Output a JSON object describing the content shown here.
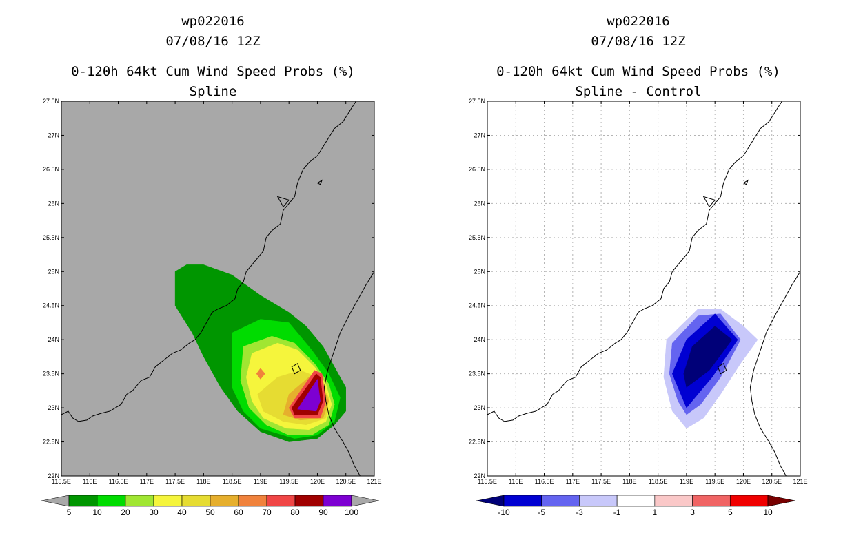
{
  "chart_data": [
    {
      "type": "heatmap",
      "title_lines": [
        "wp022016",
        "07/08/16 12Z",
        "0-120h 64kt Cum Wind Speed Probs (%)",
        "Spline"
      ],
      "xlabel": "",
      "ylabel": "",
      "xlim": [
        115.5,
        121
      ],
      "ylim": [
        22,
        27.5
      ],
      "x_ticks": [
        115.5,
        116,
        116.5,
        117,
        117.5,
        118,
        118.5,
        119,
        119.5,
        120,
        120.5,
        121
      ],
      "x_tick_labels": [
        "115.5E",
        "116E",
        "116.5E",
        "117E",
        "117.5E",
        "118E",
        "118.5E",
        "119E",
        "119.5E",
        "120E",
        "120.5E",
        "121E"
      ],
      "y_ticks": [
        22,
        22.5,
        23,
        23.5,
        24,
        24.5,
        25,
        25.5,
        26,
        26.5,
        27,
        27.5
      ],
      "y_tick_labels": [
        "22N",
        "22.5N",
        "23N",
        "23.5N",
        "24N",
        "24.5N",
        "25N",
        "25.5N",
        "26N",
        "26.5N",
        "27N",
        "27.5N"
      ],
      "grid": false,
      "background_color": "#a8a8a8",
      "colorbar": {
        "labels": [
          "5",
          "10",
          "20",
          "30",
          "40",
          "50",
          "60",
          "70",
          "80",
          "90",
          "100"
        ],
        "colors": [
          "#009600",
          "#00dc00",
          "#a0e632",
          "#f5f53c",
          "#e6dc32",
          "#e6af2d",
          "#f0823c",
          "#f04646",
          "#a00000",
          "#7d00d2"
        ],
        "extend_low_color": "#a8a8a8",
        "extend_high_color": "#a8a8a8"
      },
      "contours": [
        {
          "level": 5,
          "color": "#009600",
          "points": [
            [
              117.5,
              25.0
            ],
            [
              117.7,
              25.1
            ],
            [
              118.0,
              25.1
            ],
            [
              118.5,
              24.95
            ],
            [
              119.0,
              24.65
            ],
            [
              119.5,
              24.4
            ],
            [
              119.8,
              24.2
            ],
            [
              120.1,
              23.9
            ],
            [
              120.3,
              23.6
            ],
            [
              120.5,
              23.3
            ],
            [
              120.5,
              22.95
            ],
            [
              120.3,
              22.75
            ],
            [
              120.0,
              22.55
            ],
            [
              119.5,
              22.5
            ],
            [
              119.0,
              22.65
            ],
            [
              118.6,
              22.95
            ],
            [
              118.3,
              23.3
            ],
            [
              118.0,
              23.75
            ],
            [
              117.8,
              24.1
            ],
            [
              117.5,
              24.5
            ]
          ]
        },
        {
          "level": 10,
          "color": "#00dc00",
          "points": [
            [
              118.5,
              24.1
            ],
            [
              119.0,
              24.3
            ],
            [
              119.5,
              24.25
            ],
            [
              119.9,
              23.85
            ],
            [
              120.2,
              23.5
            ],
            [
              120.4,
              23.15
            ],
            [
              120.3,
              22.8
            ],
            [
              120.0,
              22.6
            ],
            [
              119.6,
              22.55
            ],
            [
              119.0,
              22.7
            ],
            [
              118.7,
              22.95
            ],
            [
              118.5,
              23.3
            ],
            [
              118.5,
              23.7
            ]
          ]
        },
        {
          "level": 20,
          "color": "#a0e632",
          "points": [
            [
              118.7,
              23.9
            ],
            [
              119.2,
              24.05
            ],
            [
              119.6,
              23.95
            ],
            [
              119.95,
              23.65
            ],
            [
              120.2,
              23.35
            ],
            [
              120.3,
              23.05
            ],
            [
              120.2,
              22.75
            ],
            [
              119.9,
              22.6
            ],
            [
              119.5,
              22.6
            ],
            [
              119.1,
              22.75
            ],
            [
              118.8,
              23.0
            ],
            [
              118.65,
              23.4
            ]
          ]
        },
        {
          "level": 30,
          "color": "#f5f53c",
          "points": [
            [
              118.85,
              23.8
            ],
            [
              119.3,
              23.95
            ],
            [
              119.65,
              23.85
            ],
            [
              119.95,
              23.6
            ],
            [
              120.15,
              23.35
            ],
            [
              120.25,
              23.05
            ],
            [
              120.15,
              22.8
            ],
            [
              119.85,
              22.68
            ],
            [
              119.45,
              22.7
            ],
            [
              119.05,
              22.85
            ],
            [
              118.85,
              23.1
            ],
            [
              118.75,
              23.45
            ]
          ]
        },
        {
          "level": 40,
          "color": "#e6dc32",
          "points": [
            [
              119.3,
              23.45
            ],
            [
              119.7,
              23.55
            ],
            [
              120.0,
              23.45
            ],
            [
              120.2,
              23.15
            ],
            [
              120.15,
              22.85
            ],
            [
              119.8,
              22.75
            ],
            [
              119.4,
              22.8
            ],
            [
              119.05,
              22.95
            ],
            [
              118.95,
              23.2
            ]
          ]
        },
        {
          "level": 50,
          "color": "#e6af2d",
          "points": [
            [
              119.5,
              23.2
            ],
            [
              119.85,
              23.45
            ],
            [
              120.05,
              23.4
            ],
            [
              120.2,
              23.1
            ],
            [
              120.1,
              22.85
            ],
            [
              119.7,
              22.82
            ],
            [
              119.4,
              22.9
            ]
          ]
        },
        {
          "level": 60,
          "color": "#f0823c",
          "points": [
            [
              118.93,
              23.5
            ],
            [
              119.0,
              23.58
            ],
            [
              119.08,
              23.5
            ],
            [
              119.0,
              23.42
            ]
          ]
        },
        {
          "level": 70,
          "color": "#f04646",
          "points": [
            [
              119.5,
              23.0
            ],
            [
              119.95,
              23.55
            ],
            [
              120.08,
              23.5
            ],
            [
              120.15,
              23.1
            ],
            [
              120.05,
              22.85
            ],
            [
              119.6,
              22.85
            ]
          ]
        },
        {
          "level": 80,
          "color": "#a00000",
          "points": [
            [
              119.55,
              23.0
            ],
            [
              119.98,
              23.5
            ],
            [
              120.05,
              23.45
            ],
            [
              120.1,
              23.1
            ],
            [
              120.0,
              22.9
            ],
            [
              119.6,
              22.9
            ]
          ]
        },
        {
          "level": 90,
          "color": "#7d00d2",
          "points": [
            [
              119.65,
              22.98
            ],
            [
              120.0,
              23.42
            ],
            [
              120.05,
              23.1
            ],
            [
              119.98,
              22.95
            ]
          ]
        }
      ]
    },
    {
      "type": "heatmap",
      "title_lines": [
        "wp022016",
        "07/08/16 12Z",
        "0-120h 64kt Cum Wind Speed Probs (%)",
        "Spline - Control"
      ],
      "xlabel": "",
      "ylabel": "",
      "xlim": [
        115.5,
        121
      ],
      "ylim": [
        22,
        27.5
      ],
      "x_ticks": [
        115.5,
        116,
        116.5,
        117,
        117.5,
        118,
        118.5,
        119,
        119.5,
        120,
        120.5,
        121
      ],
      "x_tick_labels": [
        "115.5E",
        "116E",
        "116.5E",
        "117E",
        "117.5E",
        "118E",
        "118.5E",
        "119E",
        "119.5E",
        "120E",
        "120.5E",
        "121E"
      ],
      "y_ticks": [
        22,
        22.5,
        23,
        23.5,
        24,
        24.5,
        25,
        25.5,
        26,
        26.5,
        27,
        27.5
      ],
      "y_tick_labels": [
        "22N",
        "22.5N",
        "23N",
        "23.5N",
        "24N",
        "24.5N",
        "25N",
        "25.5N",
        "26N",
        "26.5N",
        "27N",
        "27.5N"
      ],
      "grid": true,
      "background_color": "#ffffff",
      "colorbar": {
        "labels": [
          "-10",
          "-5",
          "-3",
          "-1",
          "1",
          "3",
          "5",
          "10"
        ],
        "colors": [
          "#0000d2",
          "#6464f0",
          "#c8c8fa",
          "#ffffff",
          "#fac8c8",
          "#f06464",
          "#f00000"
        ],
        "extend_low_color": "#000078",
        "extend_high_color": "#780000"
      },
      "contours": [
        {
          "level": -1,
          "color": "#c8c8fa",
          "points": [
            [
              118.65,
              24.0
            ],
            [
              119.2,
              24.45
            ],
            [
              119.6,
              24.45
            ],
            [
              120.0,
              24.2
            ],
            [
              120.25,
              24.0
            ],
            [
              119.95,
              23.65
            ],
            [
              119.6,
              23.2
            ],
            [
              119.3,
              22.85
            ],
            [
              119.0,
              22.7
            ],
            [
              118.75,
              22.95
            ],
            [
              118.6,
              23.45
            ]
          ]
        },
        {
          "level": -3,
          "color": "#6464f0",
          "points": [
            [
              118.75,
              23.95
            ],
            [
              119.2,
              24.35
            ],
            [
              119.6,
              24.38
            ],
            [
              119.95,
              24.0
            ],
            [
              119.6,
              23.45
            ],
            [
              119.25,
              23.05
            ],
            [
              119.0,
              22.9
            ],
            [
              118.85,
              23.1
            ],
            [
              118.7,
              23.5
            ]
          ]
        },
        {
          "level": -5,
          "color": "#0000d2",
          "points": [
            [
              118.75,
              23.5
            ],
            [
              119.0,
              24.0
            ],
            [
              119.5,
              24.38
            ],
            [
              119.9,
              24.0
            ],
            [
              119.45,
              23.45
            ],
            [
              119.0,
              23.0
            ]
          ]
        },
        {
          "level": -10,
          "color": "#000078",
          "points": [
            [
              118.95,
              23.5
            ],
            [
              119.1,
              23.9
            ],
            [
              119.5,
              24.2
            ],
            [
              119.8,
              24.0
            ],
            [
              119.4,
              23.55
            ],
            [
              119.0,
              23.3
            ]
          ]
        }
      ]
    }
  ],
  "coastline": {
    "mainland": [
      [
        115.5,
        22.9
      ],
      [
        115.62,
        22.95
      ],
      [
        115.7,
        22.85
      ],
      [
        115.8,
        22.8
      ],
      [
        115.95,
        22.82
      ],
      [
        116.05,
        22.88
      ],
      [
        116.2,
        22.92
      ],
      [
        116.35,
        22.95
      ],
      [
        116.55,
        23.05
      ],
      [
        116.65,
        23.2
      ],
      [
        116.75,
        23.25
      ],
      [
        116.9,
        23.4
      ],
      [
        117.05,
        23.45
      ],
      [
        117.15,
        23.6
      ],
      [
        117.3,
        23.7
      ],
      [
        117.45,
        23.8
      ],
      [
        117.6,
        23.85
      ],
      [
        117.75,
        23.95
      ],
      [
        117.85,
        24.0
      ],
      [
        117.95,
        24.1
      ],
      [
        118.05,
        24.25
      ],
      [
        118.15,
        24.4
      ],
      [
        118.25,
        24.45
      ],
      [
        118.4,
        24.5
      ],
      [
        118.55,
        24.6
      ],
      [
        118.6,
        24.75
      ],
      [
        118.7,
        24.85
      ],
      [
        118.75,
        25.0
      ],
      [
        118.85,
        25.1
      ],
      [
        118.95,
        25.2
      ],
      [
        119.05,
        25.3
      ],
      [
        119.1,
        25.5
      ],
      [
        119.2,
        25.6
      ],
      [
        119.35,
        25.7
      ],
      [
        119.4,
        25.9
      ],
      [
        119.5,
        26.0
      ],
      [
        119.6,
        26.1
      ],
      [
        119.65,
        26.3
      ],
      [
        119.75,
        26.5
      ],
      [
        119.85,
        26.6
      ],
      [
        120.0,
        26.7
      ],
      [
        120.15,
        26.9
      ],
      [
        120.3,
        27.1
      ],
      [
        120.45,
        27.2
      ],
      [
        120.6,
        27.4
      ],
      [
        120.68,
        27.5
      ]
    ],
    "taiwan": [
      [
        121.0,
        25.0
      ],
      [
        120.85,
        24.8
      ],
      [
        120.72,
        24.6
      ],
      [
        120.55,
        24.35
      ],
      [
        120.4,
        24.1
      ],
      [
        120.28,
        23.8
      ],
      [
        120.18,
        23.55
      ],
      [
        120.12,
        23.3
      ],
      [
        120.15,
        23.1
      ],
      [
        120.2,
        22.9
      ],
      [
        120.3,
        22.7
      ],
      [
        120.45,
        22.5
      ],
      [
        120.55,
        22.35
      ],
      [
        120.65,
        22.15
      ],
      [
        120.75,
        22.0
      ]
    ],
    "islands": [
      [
        [
          119.55,
          23.6
        ],
        [
          119.65,
          23.65
        ],
        [
          119.7,
          23.55
        ],
        [
          119.6,
          23.5
        ]
      ],
      [
        [
          120.0,
          26.3
        ],
        [
          120.08,
          26.34
        ],
        [
          120.05,
          26.28
        ]
      ],
      [
        [
          119.3,
          26.1
        ],
        [
          119.5,
          26.05
        ],
        [
          119.4,
          25.95
        ]
      ]
    ]
  }
}
